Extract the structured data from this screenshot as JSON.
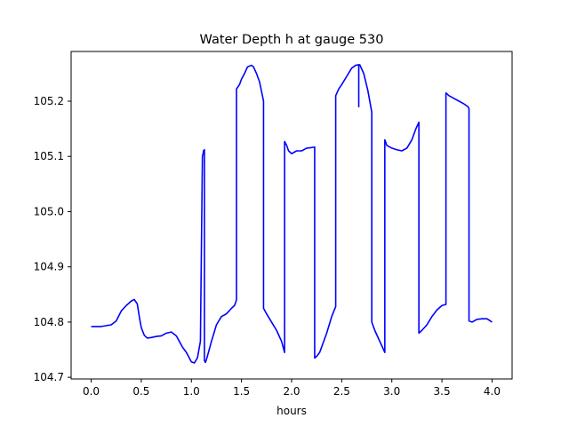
{
  "chart_data": {
    "type": "line",
    "title": "Water Depth h at gauge 530",
    "xlabel": "hours",
    "ylabel": "",
    "xlim": [
      -0.2,
      4.2
    ],
    "ylim": [
      104.697,
      105.29
    ],
    "xticks": [
      {
        "value": 0.0,
        "label": "0.0"
      },
      {
        "value": 0.5,
        "label": "0.5"
      },
      {
        "value": 1.0,
        "label": "1.0"
      },
      {
        "value": 1.5,
        "label": "1.5"
      },
      {
        "value": 2.0,
        "label": "2.0"
      },
      {
        "value": 2.5,
        "label": "2.5"
      },
      {
        "value": 3.0,
        "label": "3.0"
      },
      {
        "value": 3.5,
        "label": "3.5"
      },
      {
        "value": 4.0,
        "label": "4.0"
      }
    ],
    "yticks": [
      {
        "value": 104.7,
        "label": "104.7"
      },
      {
        "value": 104.8,
        "label": "104.8"
      },
      {
        "value": 104.9,
        "label": "104.9"
      },
      {
        "value": 105.0,
        "label": "105.0"
      },
      {
        "value": 105.1,
        "label": "105.1"
      },
      {
        "value": 105.2,
        "label": "105.2"
      }
    ],
    "grid": false,
    "series": [
      {
        "color": "#0000ff",
        "x": [
          0.0,
          0.1,
          0.2,
          0.25,
          0.3,
          0.35,
          0.4,
          0.43,
          0.46,
          0.48,
          0.5,
          0.53,
          0.56,
          0.6,
          0.65,
          0.7,
          0.75,
          0.8,
          0.85,
          0.88,
          0.91,
          0.95,
          1.0,
          1.03,
          1.06,
          1.09,
          1.11,
          1.12,
          1.12,
          1.13,
          1.13,
          1.14,
          1.15,
          1.17,
          1.2,
          1.25,
          1.3,
          1.35,
          1.4,
          1.43,
          1.45,
          1.45,
          1.48,
          1.5,
          1.53,
          1.56,
          1.6,
          1.62,
          1.65,
          1.68,
          1.72,
          1.72,
          1.75,
          1.8,
          1.85,
          1.9,
          1.93,
          1.93,
          1.95,
          1.97,
          2.0,
          2.05,
          2.1,
          2.15,
          2.2,
          2.23,
          2.23,
          2.25,
          2.28,
          2.3,
          2.35,
          2.4,
          2.44,
          2.44,
          2.47,
          2.5,
          2.55,
          2.6,
          2.64,
          2.67,
          2.67,
          2.67,
          2.68,
          2.72,
          2.76,
          2.8,
          2.8,
          2.83,
          2.88,
          2.93,
          2.93,
          2.95,
          3.0,
          3.05,
          3.1,
          3.15,
          3.2,
          3.24,
          3.27,
          3.27,
          3.3,
          3.35,
          3.4,
          3.45,
          3.5,
          3.54,
          3.54,
          3.57,
          3.62,
          3.67,
          3.72,
          3.76,
          3.77,
          3.77,
          3.8,
          3.85,
          3.9,
          3.95,
          4.0
        ],
        "y": [
          104.792,
          104.792,
          104.795,
          104.802,
          104.82,
          104.83,
          104.838,
          104.841,
          104.833,
          104.81,
          104.79,
          104.776,
          104.771,
          104.772,
          104.774,
          104.775,
          104.78,
          104.782,
          104.775,
          104.765,
          104.755,
          104.745,
          104.728,
          104.726,
          104.735,
          104.765,
          105.1,
          105.108,
          105.11,
          105.112,
          104.73,
          104.727,
          104.732,
          104.745,
          104.765,
          104.795,
          104.81,
          104.815,
          104.825,
          104.83,
          104.84,
          105.222,
          105.23,
          105.24,
          105.25,
          105.262,
          105.265,
          105.262,
          105.25,
          105.235,
          105.2,
          104.825,
          104.815,
          104.8,
          104.785,
          104.765,
          104.745,
          105.127,
          105.12,
          105.11,
          105.105,
          105.11,
          105.11,
          105.115,
          105.116,
          105.117,
          104.735,
          104.738,
          104.745,
          104.755,
          104.78,
          104.81,
          104.828,
          105.21,
          105.222,
          105.23,
          105.245,
          105.26,
          105.265,
          105.266,
          105.19,
          105.265,
          105.266,
          105.25,
          105.22,
          105.18,
          104.8,
          104.785,
          104.765,
          104.745,
          105.13,
          105.12,
          105.115,
          105.112,
          105.11,
          105.115,
          105.13,
          105.15,
          105.162,
          104.78,
          104.785,
          104.795,
          104.81,
          104.822,
          104.83,
          104.832,
          105.215,
          105.21,
          105.205,
          105.2,
          105.195,
          105.19,
          105.186,
          104.802,
          104.8,
          104.805,
          104.806,
          104.806,
          104.8
        ]
      }
    ]
  }
}
